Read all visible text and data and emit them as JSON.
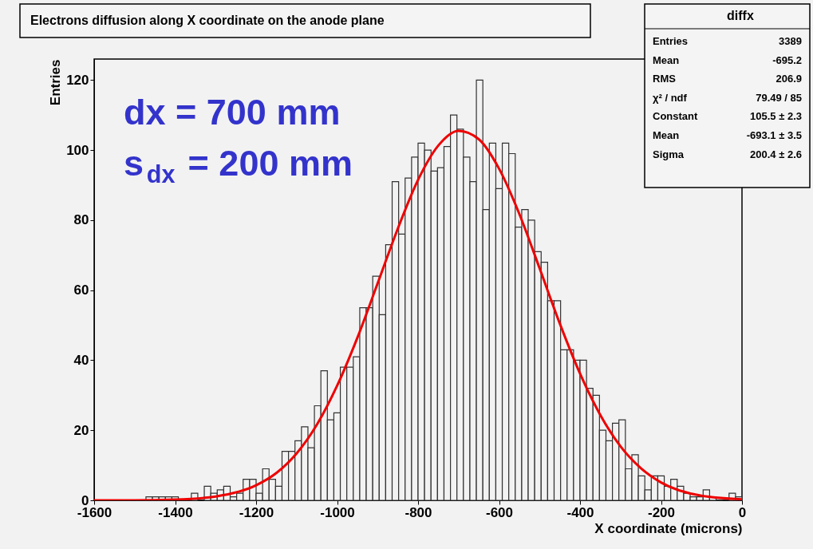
{
  "chart_data": {
    "type": "histogram",
    "title": "Electrons diffusion along X coordinate on the anode plane",
    "xlabel": "X coordinate (microns)",
    "ylabel": "Entries",
    "annotations": [
      "dx = 700 mm",
      "s$_{dx}$ = 200 mm",
      "diffx",
      "Entries",
      "3389",
      "Mean",
      "-695.2",
      "RMS",
      "206.9",
      "χ² / ndf",
      "79.49 / 85",
      "Constant",
      "105.5 ± 2.3",
      "Mean",
      "-693.1 ± 3.5",
      "Sigma",
      "200.4 ± 2.6"
    ],
    "series": [
      {
        "color": "#333333",
        "bins": [
          -1600,
          -1584,
          -1568,
          -1552,
          -1536,
          -1520,
          -1504,
          -1488,
          -1472,
          -1456,
          -1440,
          -1424,
          -1408,
          -1392,
          -1376,
          -1360,
          -1344,
          -1328,
          -1312,
          -1296,
          -1280,
          -1264,
          -1248,
          -1232,
          -1216,
          -1200,
          -1184,
          -1168,
          -1152,
          -1136,
          -1120,
          -1104,
          -1088,
          -1072,
          -1056,
          -1040,
          -1024,
          -1008,
          -992,
          -976,
          -960,
          -944,
          -928,
          -912,
          -896,
          -880,
          -864,
          -848,
          -832,
          -816,
          -800,
          -784,
          -768,
          -752,
          -736,
          -720,
          -704,
          -688,
          -672,
          -656,
          -640,
          -624,
          -608,
          -592,
          -576,
          -560,
          -544,
          -528,
          -512,
          -496,
          -480,
          -464,
          -448,
          -432,
          -416,
          -400,
          -384,
          -368,
          -352,
          -336,
          -320,
          -304,
          -288,
          -272,
          -256,
          -240,
          -224,
          -208,
          -192,
          -176,
          -160,
          -144,
          -128,
          -112,
          -96,
          -80,
          -64,
          -48,
          -32,
          -16,
          0
        ],
        "values": [
          0,
          0,
          0,
          0,
          0,
          0,
          0,
          0,
          1,
          1,
          1,
          1,
          1,
          0,
          0,
          2,
          null,
          4,
          2,
          3,
          4,
          1,
          2,
          6,
          6,
          2,
          9,
          6,
          4,
          14,
          14,
          17,
          21,
          15,
          27,
          37,
          23,
          25,
          38,
          38,
          41,
          55,
          55,
          64,
          53,
          73,
          91,
          76,
          92,
          98,
          102,
          100,
          94,
          95,
          101,
          110,
          106,
          98,
          91,
          120,
          83,
          102,
          89,
          102,
          99,
          78,
          83,
          80,
          71,
          68,
          57,
          57,
          43,
          43,
          40,
          40,
          32,
          30,
          20,
          17,
          22,
          23,
          9,
          13,
          7,
          3,
          7,
          7,
          4,
          6,
          4,
          2,
          1,
          1,
          3,
          1,
          0,
          null,
          2,
          1
        ]
      },
      {
        "type": "line",
        "color": "#ee0000",
        "x": [
          -1600,
          -1500,
          -1400,
          -1300,
          -1200,
          -1150,
          -1100,
          -1050,
          -1000,
          -950,
          -900,
          -850,
          -800,
          -750,
          -700,
          -650,
          -600,
          -550,
          -500,
          -450,
          -400,
          -350,
          -300,
          -250,
          -200,
          -100,
          0
        ],
        "values": [
          0,
          0,
          0.2,
          1.1,
          4.3,
          7.8,
          13.4,
          21.6,
          32.7,
          46.4,
          61.9,
          77.6,
          91.5,
          101.3,
          105.5,
          103.1,
          94.7,
          81.8,
          66.3,
          50.5,
          36.2,
          24.4,
          15.4,
          9.2,
          5.1,
          1.3,
          0.3
        ]
      }
    ],
    "xlim": [
      -1600,
      0
    ],
    "ylim": [
      0,
      126
    ],
    "xticks": [
      -1600,
      -1400,
      -1200,
      -1000,
      -800,
      -600,
      -400,
      -200,
      0
    ],
    "yticks": [
      0,
      20,
      40,
      60,
      80,
      100,
      120
    ],
    "grid": false
  }
}
